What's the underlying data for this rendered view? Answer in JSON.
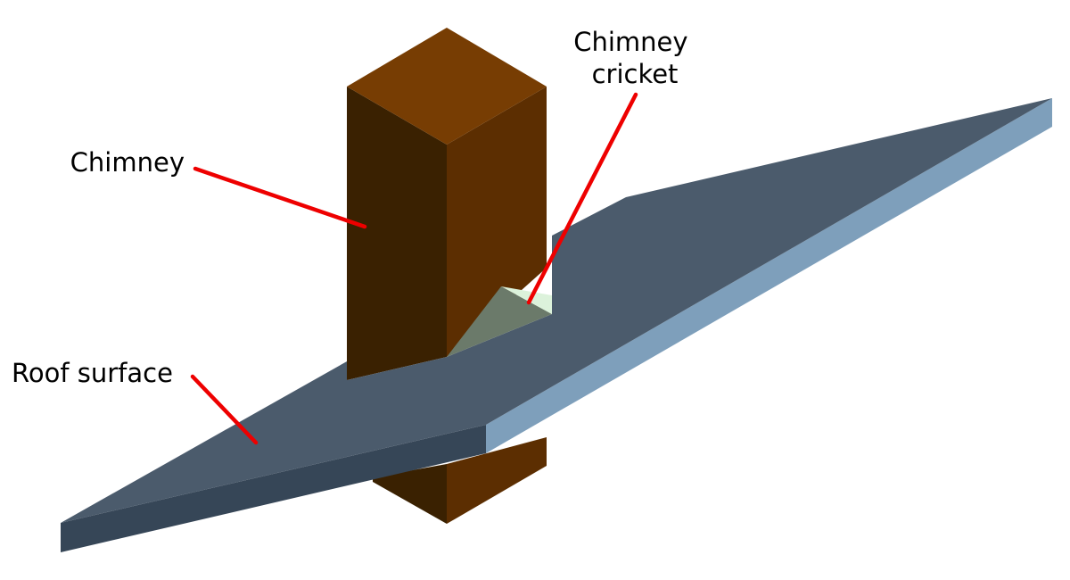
{
  "labels": {
    "chimney": "Chimney",
    "chimney_cricket_line1": "Chimney",
    "chimney_cricket_line2": "cricket",
    "roof_surface": "Roof surface"
  },
  "colors": {
    "chimney_top": "#773d03",
    "chimney_left": "#3a2101",
    "chimney_right": "#5c2e01",
    "roof_top": "#4b5b6c",
    "roof_front_edge": "#364657",
    "roof_side_edge": "#7e9fbb",
    "cricket_face": "#6b7a6a",
    "cricket_highlight": "#dcf2db",
    "leader_line": "#ee0000"
  }
}
